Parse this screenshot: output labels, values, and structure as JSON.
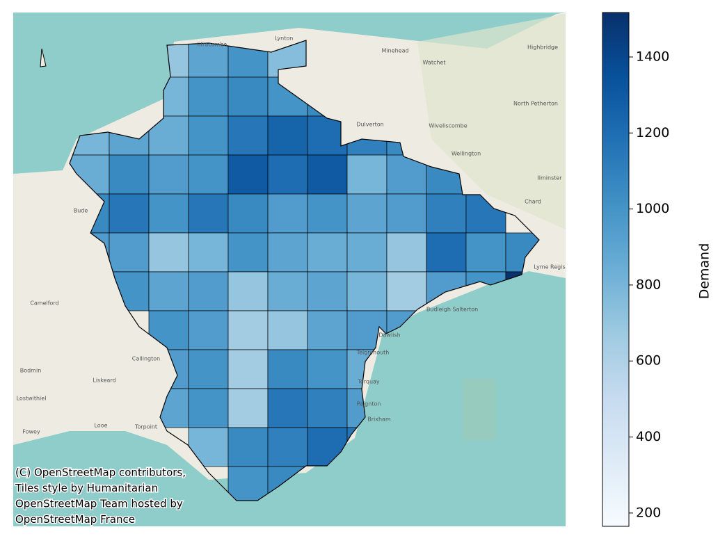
{
  "chart_data": {
    "type": "choropleth",
    "colorbar_label": "Demand",
    "clim": [
      165,
      1517
    ],
    "cticks": [
      200,
      400,
      600,
      800,
      1000,
      1200,
      1400
    ],
    "colormap": [
      "#f7fbff",
      "#deebf7",
      "#c6dbef",
      "#9ecae1",
      "#6baed6",
      "#4292c6",
      "#2171b5",
      "#08519c",
      "#08306b"
    ],
    "values": [
      [
        null,
        null,
        700,
        900,
        1000,
        750,
        null,
        null,
        null,
        null,
        null,
        null
      ],
      [
        null,
        null,
        800,
        1000,
        1050,
        1000,
        1050,
        null,
        null,
        null,
        null,
        null
      ],
      [
        800,
        900,
        850,
        1000,
        1150,
        1250,
        1200,
        1100,
        1050,
        null,
        null,
        null
      ],
      [
        850,
        1050,
        950,
        1000,
        1300,
        1200,
        1300,
        800,
        950,
        1050,
        null,
        null
      ],
      [
        1050,
        1150,
        1000,
        1150,
        1050,
        950,
        1000,
        900,
        950,
        1100,
        1150,
        null
      ],
      [
        950,
        950,
        700,
        800,
        1000,
        900,
        850,
        850,
        700,
        1200,
        1000,
        1050
      ],
      [
        null,
        1000,
        900,
        950,
        700,
        850,
        900,
        800,
        650,
        950,
        1000,
        1500
      ],
      [
        null,
        null,
        1000,
        950,
        650,
        700,
        900,
        950,
        950,
        null,
        null,
        null
      ],
      [
        null,
        null,
        950,
        1000,
        650,
        1050,
        1000,
        850,
        null,
        null,
        null,
        null
      ],
      [
        null,
        null,
        900,
        1000,
        650,
        1150,
        1100,
        950,
        null,
        null,
        null,
        null
      ],
      [
        null,
        null,
        null,
        800,
        1050,
        1100,
        1200,
        1150,
        null,
        null,
        null,
        null
      ],
      [
        null,
        null,
        null,
        null,
        1000,
        1050,
        null,
        null,
        null,
        null,
        null,
        null
      ]
    ],
    "places": [
      "Ilfracombe",
      "Lynton",
      "Minehead",
      "Watchet",
      "Highbridge",
      "North Petherton",
      "Dulverton",
      "Wiveliscombe",
      "Wellington",
      "Ilminster",
      "Chard",
      "Bude",
      "Lyme Regis",
      "Camelford",
      "Budleigh Salterton",
      "Dawlish",
      "Teignmouth",
      "Torquay",
      "Paignton",
      "Brixham",
      "Callington",
      "Liskeard",
      "Bodmin",
      "Lostwithiel",
      "Looe",
      "Torpoint",
      "Fowey"
    ],
    "attribution": [
      "(C) OpenStreetMap contributors,",
      "Tiles style by Humanitarian",
      "OpenStreetMap Team hosted by",
      "OpenStreetMap France"
    ]
  }
}
